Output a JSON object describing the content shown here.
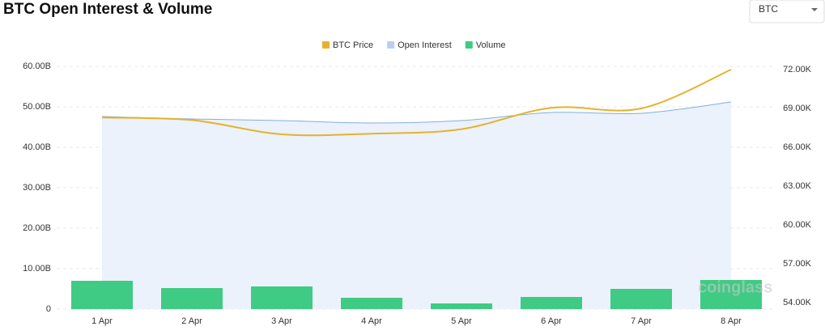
{
  "chart_data": {
    "type": "bar-area-line",
    "title": "BTC Open Interest & Volume",
    "selector": "BTC",
    "watermark": "coinglass",
    "categories": [
      "1 Apr",
      "2 Apr",
      "3 Apr",
      "4 Apr",
      "5 Apr",
      "6 Apr",
      "7 Apr",
      "8 Apr"
    ],
    "series": [
      {
        "name": "BTC Price",
        "color": "#e6b22e",
        "kind": "line",
        "axis": "y2",
        "values": [
          68300,
          68100,
          67000,
          67050,
          67400,
          69050,
          69000,
          72000
        ]
      },
      {
        "name": "Open Interest",
        "color": "#b9cff0",
        "kind": "area",
        "values": [
          47.6,
          47.0,
          46.6,
          46.0,
          46.6,
          48.6,
          48.4,
          51.2
        ]
      },
      {
        "name": "Volume",
        "color": "#3fcb84",
        "kind": "bar",
        "values": [
          7.0,
          5.2,
          5.6,
          2.8,
          1.4,
          3.0,
          5.0,
          7.2
        ]
      }
    ],
    "ylim": [
      0,
      60
    ],
    "yticks": [
      0,
      {
        "value": 10,
        "label": "10.00B"
      },
      {
        "value": 20,
        "label": "20.00B"
      },
      {
        "value": 30,
        "label": "30.00B"
      },
      {
        "value": 40,
        "label": "40.00B"
      },
      {
        "value": 50,
        "label": "50.00B"
      },
      {
        "value": 60,
        "label": "60.00B"
      }
    ],
    "y2lim": [
      53500,
      72250
    ],
    "y2ticks": [
      {
        "value": 54000,
        "label": "54.00K"
      },
      {
        "value": 57000,
        "label": "57.00K"
      },
      {
        "value": 60000,
        "label": "60.00K"
      },
      {
        "value": 63000,
        "label": "63.00K"
      },
      {
        "value": 66000,
        "label": "66.00K"
      },
      {
        "value": 69000,
        "label": "69.00K"
      },
      {
        "value": 72000,
        "label": "72.00K"
      }
    ],
    "grid": true
  }
}
